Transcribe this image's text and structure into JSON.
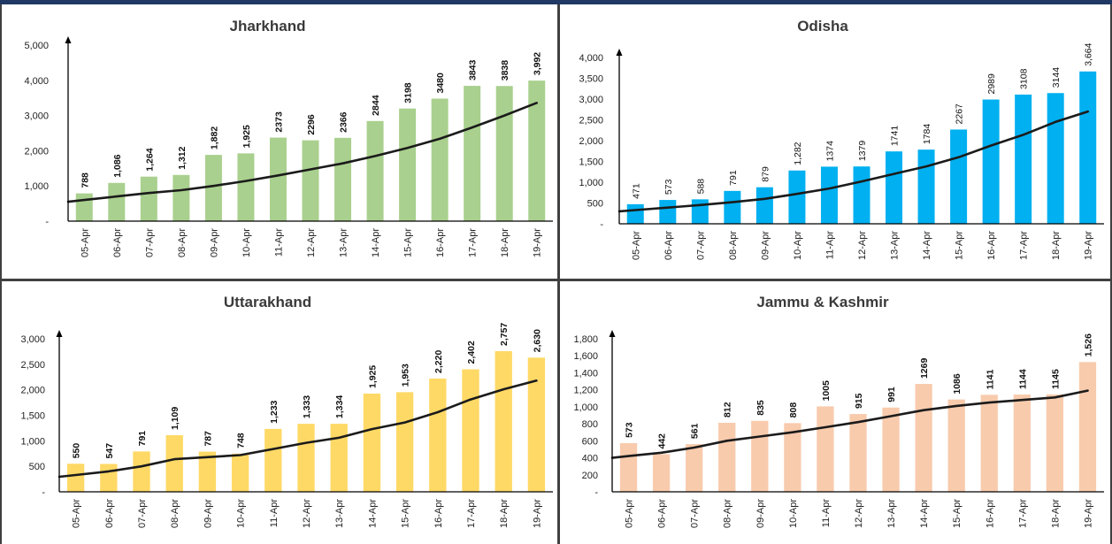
{
  "chart_data": [
    {
      "type": "bar",
      "title": "Jharkhand",
      "categories": [
        "05-Apr",
        "06-Apr",
        "07-Apr",
        "08-Apr",
        "09-Apr",
        "10-Apr",
        "11-Apr",
        "12-Apr",
        "13-Apr",
        "14-Apr",
        "15-Apr",
        "16-Apr",
        "17-Apr",
        "18-Apr",
        "19-Apr"
      ],
      "values": [
        788,
        1086,
        1264,
        1312,
        1882,
        1925,
        2373,
        2296,
        2366,
        2844,
        3198,
        3480,
        3843,
        3838,
        3992
      ],
      "value_labels": [
        "788",
        "1,086",
        "1,264",
        "1,312",
        "1,882",
        "1,925",
        "2373",
        "2296",
        "2366",
        "2844",
        "3198",
        "3480",
        "3843",
        "3838",
        "3,992"
      ],
      "trend": [
        600,
        700,
        800,
        880,
        1000,
        1140,
        1300,
        1470,
        1640,
        1850,
        2080,
        2340,
        2660,
        3000,
        3360
      ],
      "yticks": [
        "-",
        "1,000",
        "2,000",
        "3,000",
        "4,000",
        "5,000"
      ],
      "ylim": [
        0,
        5000
      ],
      "bar_color": "#a9d08e",
      "grid": false
    },
    {
      "type": "bar",
      "title": "Odisha",
      "categories": [
        "05-Apr",
        "06-Apr",
        "07-Apr",
        "08-Apr",
        "09-Apr",
        "10-Apr",
        "11-Apr",
        "12-Apr",
        "13-Apr",
        "14-Apr",
        "15-Apr",
        "16-Apr",
        "17-Apr",
        "18-Apr",
        "19-Apr"
      ],
      "values": [
        471,
        573,
        588,
        791,
        879,
        1282,
        1374,
        1379,
        1741,
        1784,
        2267,
        2989,
        3108,
        3144,
        3664
      ],
      "value_labels": [
        "471",
        "573",
        "588",
        "791",
        "879",
        "1,282",
        "1374",
        "1379",
        "1741",
        "1784",
        "2267",
        "2989",
        "3108",
        "3144",
        "3,664"
      ],
      "trend": [
        330,
        390,
        450,
        520,
        600,
        720,
        850,
        1020,
        1200,
        1380,
        1600,
        1880,
        2140,
        2450,
        2700
      ],
      "yticks": [
        "-",
        "500",
        "1,000",
        "1,500",
        "2,000",
        "2,500",
        "3,000",
        "3,500",
        "4,000"
      ],
      "ylim": [
        0,
        4000
      ],
      "bar_color": "#00b0f0",
      "grid": false
    },
    {
      "type": "bar",
      "title": "Uttarakhand",
      "categories": [
        "05-Apr",
        "06-Apr",
        "07-Apr",
        "08-Apr",
        "09-Apr",
        "10-Apr",
        "11-Apr",
        "12-Apr",
        "13-Apr",
        "14-Apr",
        "15-Apr",
        "16-Apr",
        "17-Apr",
        "18-Apr",
        "19-Apr"
      ],
      "values": [
        550,
        547,
        791,
        1109,
        787,
        748,
        1233,
        1333,
        1334,
        1925,
        1953,
        2220,
        2402,
        2757,
        2630
      ],
      "value_labels": [
        "550",
        "547",
        "791",
        "1,109",
        "787",
        "748",
        "1,233",
        "1,333",
        "1,334",
        "1,925",
        "1,953",
        "2,220",
        "2,402",
        "2,757",
        "2,630"
      ],
      "trend": [
        330,
        400,
        500,
        640,
        680,
        720,
        840,
        960,
        1060,
        1230,
        1360,
        1560,
        1810,
        2010,
        2180
      ],
      "yticks": [
        "-",
        "500",
        "1,000",
        "1,500",
        "2,000",
        "2,500",
        "3,000"
      ],
      "ylim": [
        0,
        3000
      ],
      "bar_color": "#ffd966",
      "grid": false
    },
    {
      "type": "bar",
      "title": "Jammu & Kashmir",
      "categories": [
        "05-Apr",
        "06-Apr",
        "07-Apr",
        "08-Apr",
        "09-Apr",
        "10-Apr",
        "11-Apr",
        "12-Apr",
        "13-Apr",
        "14-Apr",
        "15-Apr",
        "16-Apr",
        "17-Apr",
        "18-Apr",
        "19-Apr"
      ],
      "values": [
        573,
        442,
        561,
        812,
        835,
        808,
        1005,
        915,
        991,
        1269,
        1086,
        1141,
        1144,
        1145,
        1526
      ],
      "value_labels": [
        "573",
        "442",
        "561",
        "812",
        "835",
        "808",
        "1005",
        "915",
        "991",
        "1269",
        "1086",
        "1141",
        "1144",
        "1145",
        "1,526"
      ],
      "trend": [
        420,
        460,
        520,
        600,
        650,
        700,
        760,
        820,
        890,
        960,
        1010,
        1050,
        1080,
        1110,
        1190
      ],
      "yticks": [
        "-",
        "200",
        "400",
        "600",
        "800",
        "1,000",
        "1,200",
        "1,400",
        "1,600",
        "1,800"
      ],
      "ylim": [
        0,
        1800
      ],
      "bar_color": "#f8cbad",
      "grid": false
    }
  ]
}
